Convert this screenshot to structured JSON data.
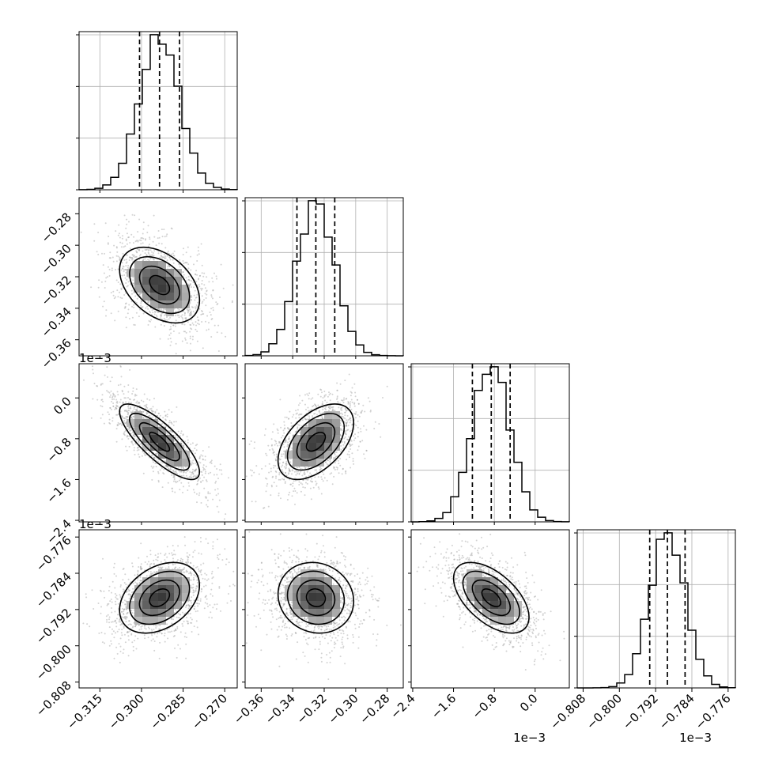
{
  "colors": {
    "hist_line": "#000000",
    "grid": "#b0b0b0",
    "frame": "#000000",
    "scatter": "#9e9e9e",
    "density_dark": "#000000",
    "density_light": "#ffffff"
  },
  "chart_data": {
    "type": "corner",
    "parameters": [
      {
        "id": "p0",
        "range": [
          -0.3225,
          -0.2655
        ],
        "ticks": [
          -0.315,
          -0.3,
          -0.285,
          -0.27
        ],
        "tick_labels": [
          "−0.315",
          "−0.300",
          "−0.285",
          "−0.270"
        ],
        "exponent": "",
        "mean": -0.2935,
        "sigma": 0.0072,
        "quantiles": [
          -0.3007,
          -0.2935,
          -0.2863
        ]
      },
      {
        "id": "p1",
        "range": [
          -0.3702,
          -0.2698
        ],
        "ticks": [
          -0.36,
          -0.34,
          -0.32,
          -0.3,
          -0.28
        ],
        "tick_labels": [
          "−0.36",
          "−0.34",
          "−0.32",
          "−0.30",
          "−0.28"
        ],
        "exponent": "",
        "mean": -0.3253,
        "sigma": 0.012,
        "quantiles": [
          -0.3373,
          -0.3253,
          -0.3133
        ]
      },
      {
        "id": "p2",
        "range": [
          -2.43,
          0.67
        ],
        "ticks": [
          -2.4,
          -1.6,
          -0.8,
          0.0
        ],
        "tick_labels": [
          "−2.4",
          "−1.6",
          "−0.8",
          "0.0"
        ],
        "exponent": "1e−3",
        "mean": -0.86,
        "sigma": 0.37,
        "quantiles": [
          -1.23,
          -0.86,
          -0.49
        ]
      },
      {
        "id": "p3",
        "range": [
          -0.8093,
          -0.7744
        ],
        "ticks": [
          -0.808,
          -0.8,
          -0.792,
          -0.784,
          -0.776
        ],
        "tick_labels": [
          "−0.808",
          "−0.800",
          "−0.792",
          "−0.784",
          "−0.776"
        ],
        "exponent": "1e−3",
        "mean": -0.7894,
        "sigma": 0.0039,
        "quantiles": [
          -0.7933,
          -0.7894,
          -0.7855
        ]
      }
    ],
    "correlations": [
      {
        "pair": [
          1,
          0
        ],
        "rho": -0.4
      },
      {
        "pair": [
          2,
          0
        ],
        "rho": -0.8
      },
      {
        "pair": [
          2,
          1
        ],
        "rho": 0.5
      },
      {
        "pair": [
          3,
          0
        ],
        "rho": 0.35
      },
      {
        "pair": [
          3,
          1
        ],
        "rho": -0.1
      },
      {
        "pair": [
          3,
          2
        ],
        "rho": -0.55
      }
    ],
    "histogram_bins": 20,
    "contour_levels": [
      0.5,
      1.0,
      1.5,
      2.0
    ],
    "grid": true
  }
}
